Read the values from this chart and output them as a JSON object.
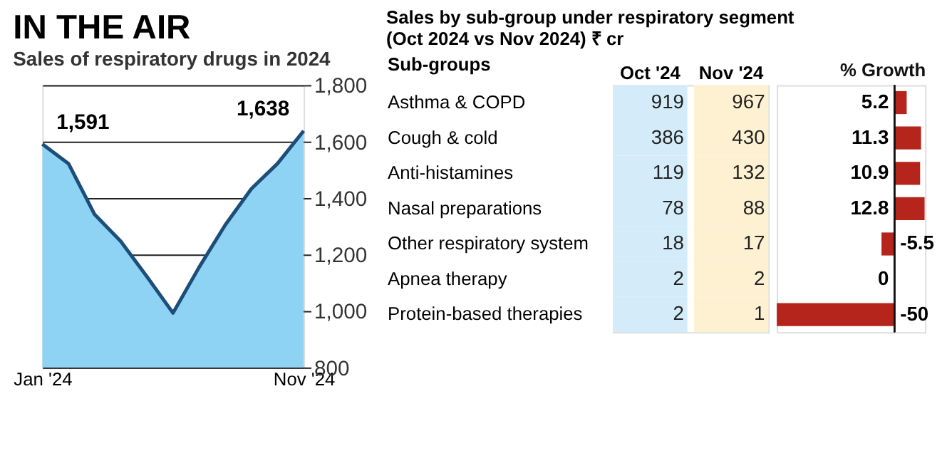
{
  "chart_data": [
    {
      "type": "area",
      "title": "IN THE AIR",
      "subtitle": "Sales of respiratory drugs in 2024",
      "categories": [
        "Jan '24",
        null,
        null,
        null,
        null,
        null,
        null,
        null,
        null,
        null,
        "Nov '24"
      ],
      "series": [
        {
          "color": "#8fd3f4",
          "values": [
            1591,
            1522,
            1342,
            1247,
            1122,
            993,
            1155,
            1305,
            1433,
            1522,
            1638
          ],
          "value_labels": [
            "1,591",
            null,
            null,
            null,
            null,
            null,
            null,
            null,
            null,
            null,
            "1,638"
          ]
        }
      ],
      "ylim": [
        800,
        1800
      ],
      "yticks": [
        {
          "value": 800,
          "label": "800"
        },
        {
          "value": 1000,
          "label": "1,000"
        },
        {
          "value": 1200,
          "label": "1,200"
        },
        {
          "value": 1400,
          "label": "1,400"
        },
        {
          "value": 1600,
          "label": "1,600"
        },
        {
          "value": 1800,
          "label": "1,800"
        }
      ],
      "grid": "y"
    },
    {
      "type": "heatmap",
      "title": "Sales by sub-group under respiratory segment\n(Oct 2024 vs Nov 2024) ₹ cr",
      "ylabel": "Sub-groups",
      "categories": [
        "Oct '24",
        "Nov '24"
      ],
      "y_categories": [
        "Asthma & COPD",
        "Cough & cold",
        "Anti-histamines",
        "Nasal preparations",
        "Other respiratory system",
        "Apnea therapy",
        "Protein-based therapies"
      ],
      "cells": [
        [
          919,
          967
        ],
        [
          386,
          430
        ],
        [
          119,
          132
        ],
        [
          78,
          88
        ],
        [
          18,
          17
        ],
        [
          2,
          2
        ],
        [
          2,
          1
        ]
      ],
      "colors": [
        "#d4ecf9",
        "#fdf1d2"
      ],
      "data_labels": true
    },
    {
      "type": "bar",
      "orientation": "horizontal",
      "xlabel": "% Growth",
      "categories": [
        null,
        null,
        null,
        null,
        null,
        null,
        null
      ],
      "values": [
        5.2,
        11.3,
        10.9,
        12.8,
        -5.5,
        0,
        -50
      ],
      "color": "#b5251b",
      "xlim": [
        -50,
        13
      ],
      "data_labels": true,
      "tick_labels": false
    }
  ]
}
